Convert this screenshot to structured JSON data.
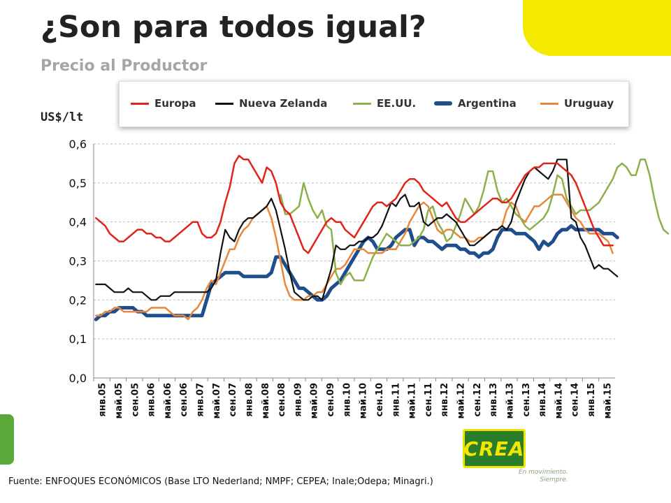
{
  "slide": {
    "title": "¿Son para todos igual?",
    "subtitle": "Precio al Productor",
    "unit_label": "US$/lt",
    "footnote": "Fuente: ENFOQUES ECONÓMICOS (Base  LTO Nederland; NMPF; CEPEA; Inale;Odepa; Minagri.)",
    "logo_text": "CREA",
    "slogan_line1": "En movimiento.",
    "slogan_line2": "Siempre."
  },
  "colors": {
    "europa": "#e2231a",
    "nueva_zelanda": "#111111",
    "eeuu": "#8cb04a",
    "argentina": "#1f4e8c",
    "uruguay": "#e8873a",
    "accent_yellow": "#f4ea00",
    "accent_green": "#5aa83a"
  },
  "chart_data": {
    "type": "line",
    "ylim": [
      0,
      0.6
    ],
    "y_ticks": [
      "0,0",
      "0,1",
      "0,2",
      "0,3",
      "0,4",
      "0,5",
      "0,6"
    ],
    "y_tick_values": [
      0,
      0.1,
      0.2,
      0.3,
      0.4,
      0.5,
      0.6
    ],
    "grid": true,
    "legend_position": "top",
    "x_tick_labels": [
      "янв.05",
      "май.05",
      "сен.05",
      "янв.06",
      "май.06",
      "сен.06",
      "янв.07",
      "май.07",
      "сен.07",
      "янв.08",
      "май.08",
      "сен.08",
      "янв.09",
      "май.09",
      "сен.09",
      "янв.10",
      "май.10",
      "сен.10",
      "янв.11",
      "май.11",
      "сен.11",
      "янв.12",
      "май.12",
      "сен.12",
      "янв.13",
      "май.13",
      "сен.13",
      "янв.14",
      "май.14",
      "сен.14",
      "янв.15",
      "май.15"
    ],
    "series": [
      {
        "name": "Europa",
        "key": "europa",
        "values": [
          0.41,
          0.4,
          0.39,
          0.37,
          0.36,
          0.35,
          0.35,
          0.36,
          0.37,
          0.38,
          0.38,
          0.37,
          0.37,
          0.36,
          0.36,
          0.35,
          0.35,
          0.36,
          0.37,
          0.38,
          0.39,
          0.4,
          0.4,
          0.37,
          0.36,
          0.36,
          0.37,
          0.4,
          0.45,
          0.49,
          0.55,
          0.57,
          0.56,
          0.56,
          0.54,
          0.52,
          0.5,
          0.54,
          0.53,
          0.5,
          0.45,
          0.43,
          0.42,
          0.39,
          0.36,
          0.33,
          0.32,
          0.34,
          0.36,
          0.38,
          0.4,
          0.41,
          0.4,
          0.4,
          0.38,
          0.37,
          0.36,
          0.38,
          0.4,
          0.42,
          0.44,
          0.45,
          0.45,
          0.44,
          0.45,
          0.46,
          0.48,
          0.5,
          0.51,
          0.51,
          0.5,
          0.48,
          0.47,
          0.46,
          0.45,
          0.44,
          0.45,
          0.43,
          0.41,
          0.4,
          0.4,
          0.41,
          0.42,
          0.43,
          0.44,
          0.45,
          0.46,
          0.46,
          0.45,
          0.45,
          0.46,
          0.48,
          0.5,
          0.52,
          0.53,
          0.54,
          0.54,
          0.55,
          0.55,
          0.55,
          0.55,
          0.54,
          0.53,
          0.52,
          0.5,
          0.47,
          0.44,
          0.41,
          0.38,
          0.36,
          0.34,
          0.34,
          0.34
        ]
      },
      {
        "name": "Nueva Zelanda",
        "key": "nueva_zelanda",
        "values": [
          0.24,
          0.24,
          0.24,
          0.23,
          0.22,
          0.22,
          0.22,
          0.23,
          0.22,
          0.22,
          0.22,
          0.21,
          0.2,
          0.2,
          0.21,
          0.21,
          0.21,
          0.22,
          0.22,
          0.22,
          0.22,
          0.22,
          0.22,
          0.22,
          0.22,
          0.23,
          0.25,
          0.32,
          0.38,
          0.36,
          0.35,
          0.38,
          0.4,
          0.41,
          0.41,
          0.42,
          0.43,
          0.44,
          0.46,
          0.43,
          0.38,
          0.33,
          0.27,
          0.22,
          0.21,
          0.2,
          0.2,
          0.21,
          0.21,
          0.2,
          0.24,
          0.28,
          0.34,
          0.33,
          0.33,
          0.34,
          0.34,
          0.35,
          0.35,
          0.36,
          0.36,
          0.37,
          0.39,
          0.42,
          0.45,
          0.44,
          0.46,
          0.47,
          0.44,
          0.44,
          0.45,
          0.4,
          0.39,
          0.4,
          0.41,
          0.41,
          0.42,
          0.41,
          0.4,
          0.38,
          0.36,
          0.34,
          0.34,
          0.35,
          0.36,
          0.37,
          0.38,
          0.38,
          0.39,
          0.38,
          0.4,
          0.45,
          0.48,
          0.51,
          0.53,
          0.54,
          0.53,
          0.52,
          0.51,
          0.53,
          0.56,
          0.56,
          0.56,
          0.41,
          0.4,
          0.36,
          0.34,
          0.31,
          0.28,
          0.29,
          0.28,
          0.28,
          0.27,
          0.26
        ]
      },
      {
        "name": "EE.UU.",
        "key": "eeuu",
        "start_index": 40,
        "values": [
          0.47,
          0.42,
          0.42,
          0.43,
          0.44,
          0.5,
          0.46,
          0.43,
          0.41,
          0.43,
          0.39,
          0.38,
          0.27,
          0.24,
          0.26,
          0.27,
          0.25,
          0.25,
          0.25,
          0.28,
          0.31,
          0.33,
          0.35,
          0.37,
          0.36,
          0.35,
          0.34,
          0.34,
          0.34,
          0.35,
          0.36,
          0.38,
          0.43,
          0.44,
          0.4,
          0.38,
          0.35,
          0.36,
          0.39,
          0.42,
          0.46,
          0.44,
          0.42,
          0.44,
          0.48,
          0.53,
          0.53,
          0.48,
          0.45,
          0.46,
          0.44,
          0.42,
          0.41,
          0.39,
          0.38,
          0.39,
          0.4,
          0.41,
          0.43,
          0.47,
          0.52,
          0.51,
          0.46,
          0.44,
          0.42,
          0.43,
          0.43,
          0.43,
          0.44,
          0.45,
          0.47,
          0.49,
          0.51,
          0.54,
          0.55,
          0.54,
          0.52,
          0.52,
          0.56,
          0.56,
          0.52,
          0.46,
          0.41,
          0.38,
          0.37
        ]
      },
      {
        "name": "Argentina",
        "key": "argentina",
        "values": [
          0.15,
          0.16,
          0.16,
          0.17,
          0.17,
          0.18,
          0.18,
          0.18,
          0.18,
          0.17,
          0.17,
          0.16,
          0.16,
          0.16,
          0.16,
          0.16,
          0.16,
          0.16,
          0.16,
          0.16,
          0.16,
          0.16,
          0.16,
          0.16,
          0.2,
          0.24,
          0.25,
          0.26,
          0.27,
          0.27,
          0.27,
          0.27,
          0.26,
          0.26,
          0.26,
          0.26,
          0.26,
          0.26,
          0.27,
          0.31,
          0.31,
          0.29,
          0.27,
          0.25,
          0.23,
          0.23,
          0.22,
          0.21,
          0.2,
          0.2,
          0.21,
          0.23,
          0.24,
          0.25,
          0.27,
          0.29,
          0.31,
          0.33,
          0.35,
          0.36,
          0.35,
          0.33,
          0.33,
          0.33,
          0.34,
          0.36,
          0.37,
          0.38,
          0.38,
          0.34,
          0.36,
          0.36,
          0.35,
          0.35,
          0.34,
          0.33,
          0.34,
          0.34,
          0.34,
          0.33,
          0.33,
          0.32,
          0.32,
          0.31,
          0.32,
          0.32,
          0.33,
          0.36,
          0.38,
          0.38,
          0.38,
          0.37,
          0.37,
          0.37,
          0.36,
          0.35,
          0.33,
          0.35,
          0.34,
          0.35,
          0.37,
          0.38,
          0.38,
          0.39,
          0.38,
          0.38,
          0.38,
          0.38,
          0.38,
          0.38,
          0.37,
          0.37,
          0.37,
          0.36
        ]
      },
      {
        "name": "Uruguay",
        "key": "uruguay",
        "values": [
          0.16,
          0.16,
          0.17,
          0.17,
          0.18,
          0.18,
          0.17,
          0.17,
          0.17,
          0.17,
          0.17,
          0.17,
          0.18,
          0.18,
          0.18,
          0.18,
          0.17,
          0.16,
          0.16,
          0.16,
          0.15,
          0.17,
          0.18,
          0.2,
          0.23,
          0.25,
          0.24,
          0.27,
          0.3,
          0.33,
          0.33,
          0.36,
          0.38,
          0.39,
          0.41,
          0.42,
          0.43,
          0.44,
          0.41,
          0.36,
          0.3,
          0.24,
          0.21,
          0.2,
          0.2,
          0.2,
          0.21,
          0.21,
          0.22,
          0.22,
          0.24,
          0.26,
          0.28,
          0.28,
          0.29,
          0.31,
          0.33,
          0.33,
          0.33,
          0.32,
          0.32,
          0.32,
          0.32,
          0.33,
          0.33,
          0.33,
          0.35,
          0.37,
          0.4,
          0.42,
          0.44,
          0.45,
          0.44,
          0.41,
          0.38,
          0.37,
          0.38,
          0.38,
          0.37,
          0.36,
          0.36,
          0.35,
          0.35,
          0.36,
          0.36,
          0.37,
          0.38,
          0.38,
          0.39,
          0.43,
          0.45,
          0.44,
          0.41,
          0.4,
          0.42,
          0.44,
          0.44,
          0.45,
          0.46,
          0.47,
          0.47,
          0.47,
          0.45,
          0.43,
          0.41,
          0.4,
          0.38,
          0.37,
          0.37,
          0.37,
          0.36,
          0.35,
          0.32
        ]
      }
    ]
  }
}
